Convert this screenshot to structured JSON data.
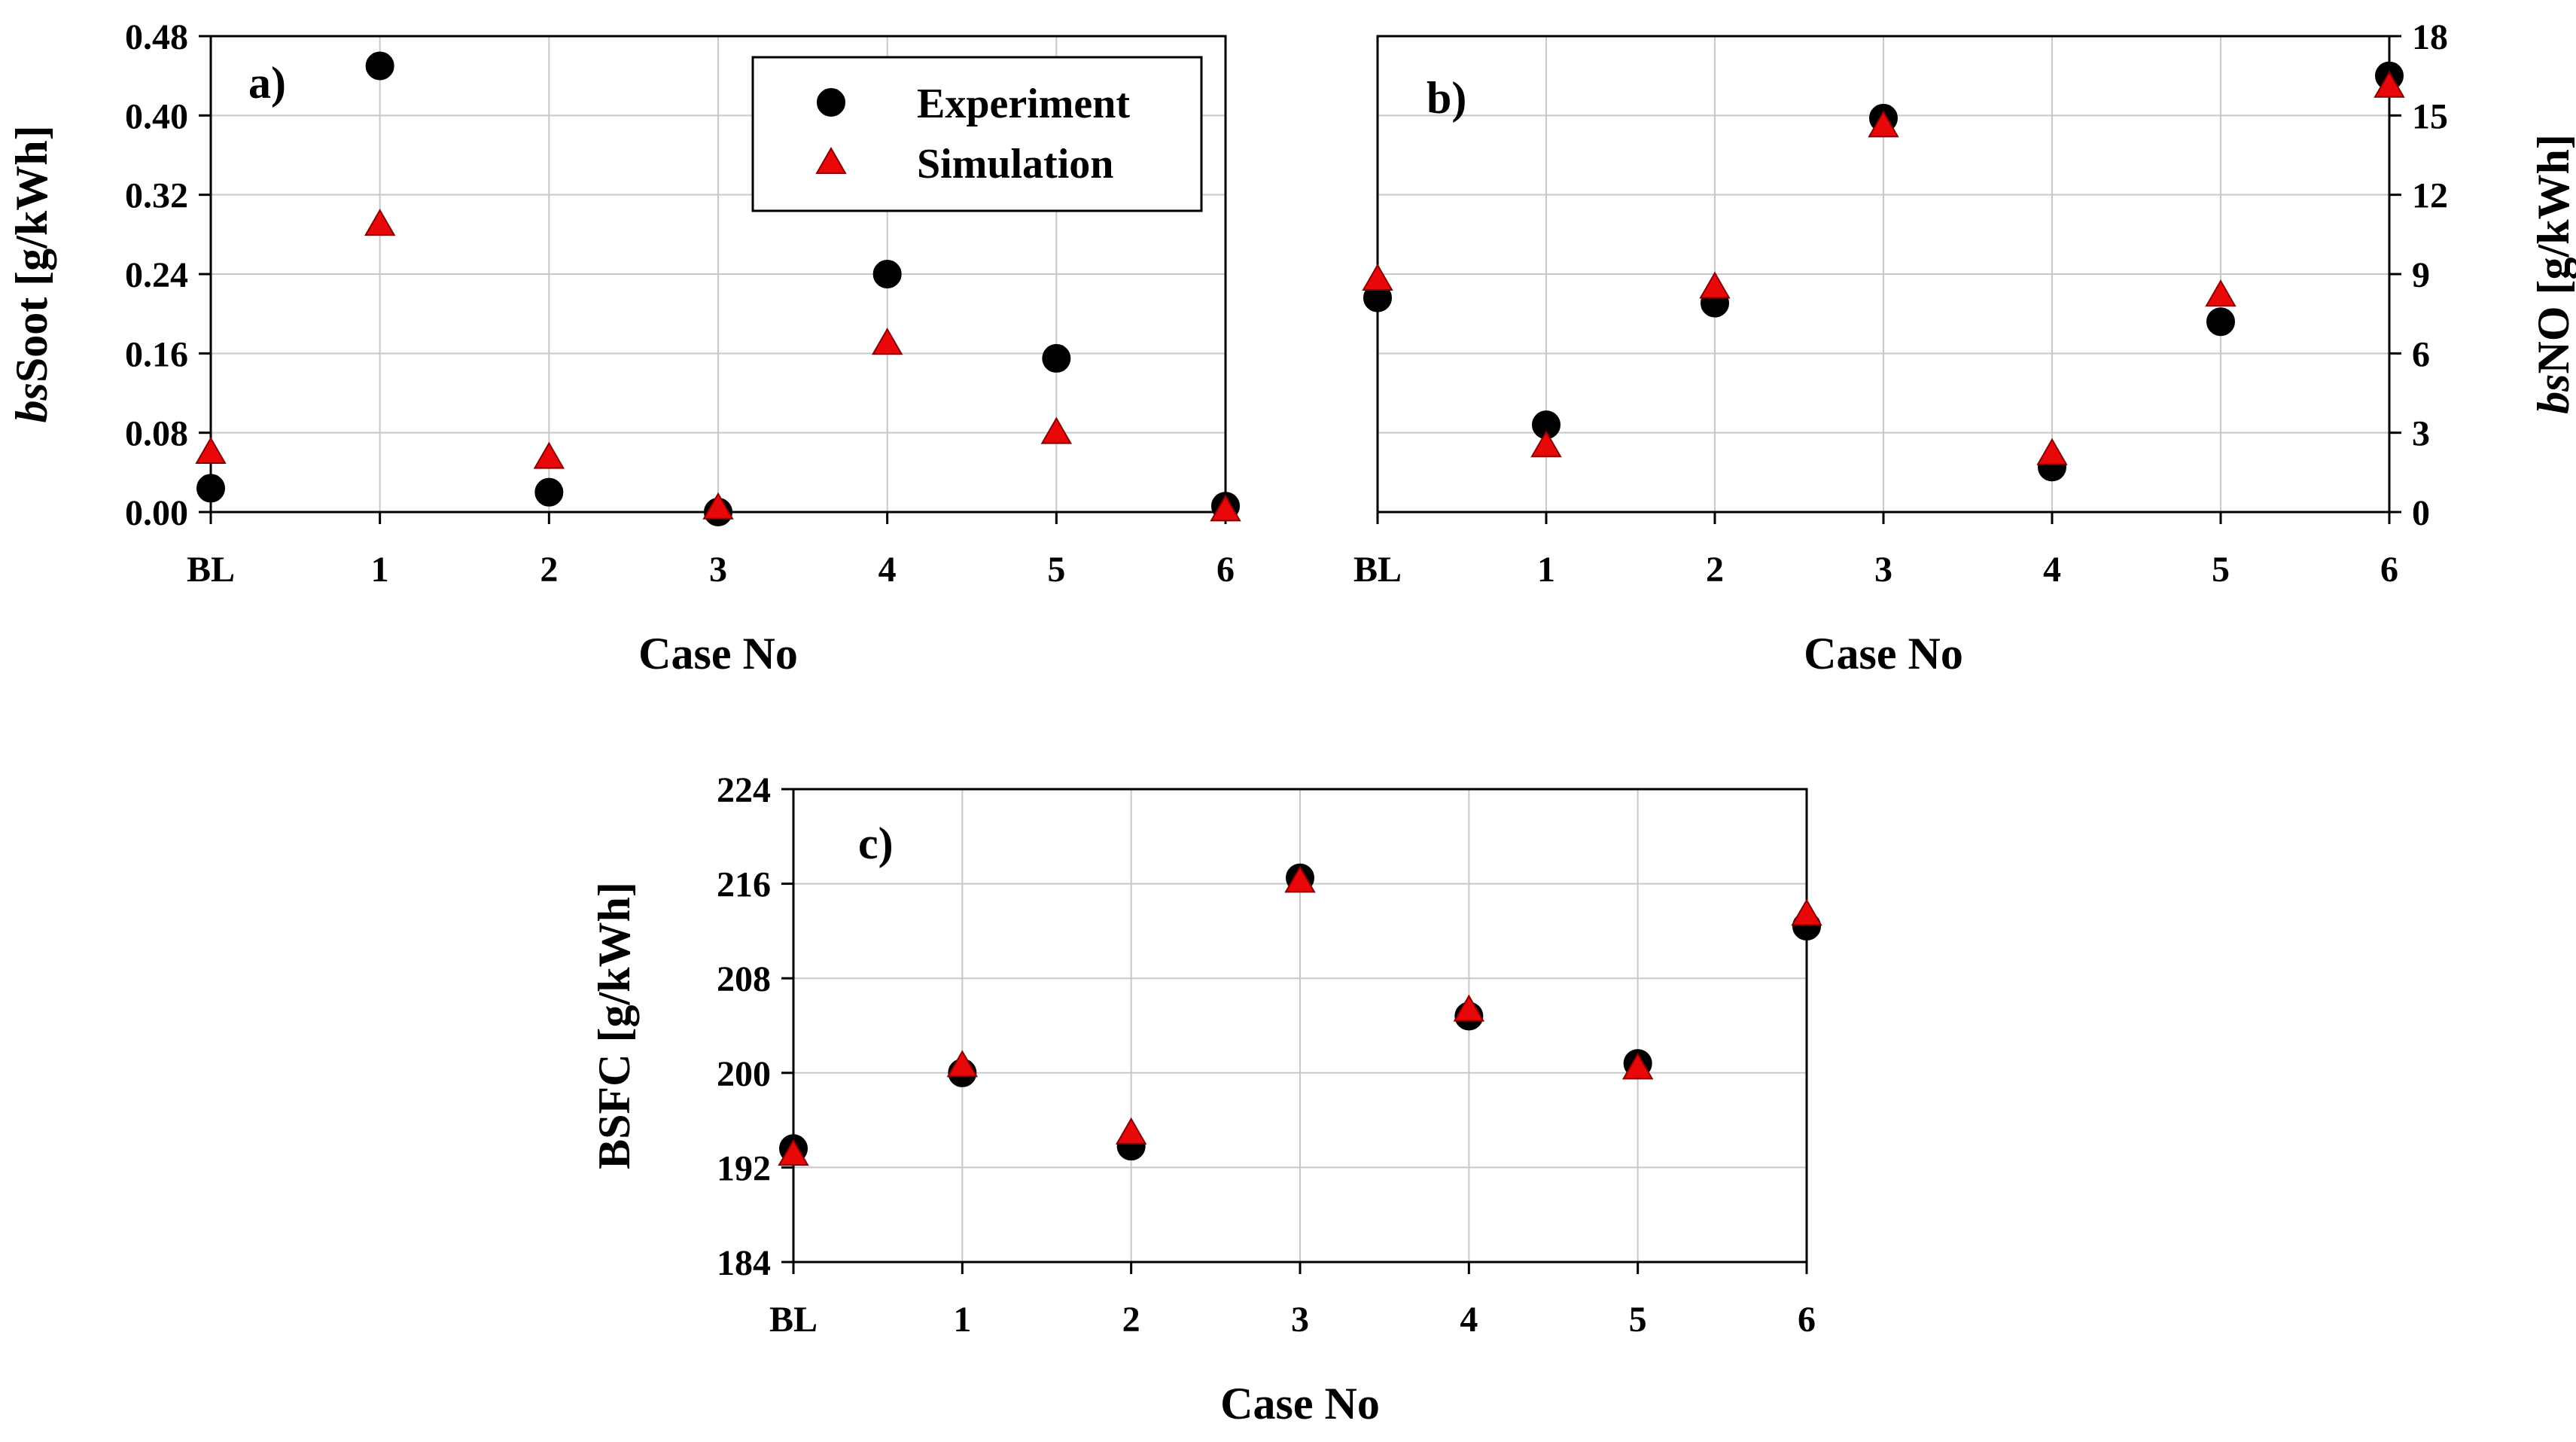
{
  "chart_data": [
    {
      "type": "scatter",
      "panel_label": "a)",
      "categories": [
        "BL",
        "1",
        "2",
        "3",
        "4",
        "5",
        "6"
      ],
      "series": [
        {
          "name": "Experiment",
          "marker": "circle",
          "color": "#000000",
          "values": [
            0.024,
            0.45,
            0.02,
            0.0,
            0.24,
            0.155,
            0.006
          ]
        },
        {
          "name": "Simulation",
          "marker": "triangle",
          "color": "#e8080a",
          "values": [
            0.06,
            0.29,
            0.055,
            0.004,
            0.17,
            0.08,
            0.002
          ]
        }
      ],
      "xlabel": "Case No",
      "ylabel_italic": "bs",
      "ylabel_rest": "Soot [g/kWh]",
      "ylim": [
        0,
        0.48
      ],
      "yticks": [
        "0.00",
        "0.08",
        "0.16",
        "0.24",
        "0.32",
        "0.40",
        "0.48"
      ],
      "grid": true,
      "legend": "top-right",
      "y_axis_side": "left"
    },
    {
      "type": "scatter",
      "panel_label": "b)",
      "categories": [
        "BL",
        "1",
        "2",
        "3",
        "4",
        "5",
        "6"
      ],
      "series": [
        {
          "name": "Experiment",
          "marker": "circle",
          "color": "#000000",
          "values": [
            8.1,
            3.3,
            7.9,
            14.9,
            1.7,
            7.2,
            16.5
          ]
        },
        {
          "name": "Simulation",
          "marker": "triangle",
          "color": "#e8080a",
          "values": [
            8.8,
            2.5,
            8.5,
            14.6,
            2.2,
            8.2,
            16.1
          ]
        }
      ],
      "xlabel": "Case No",
      "ylabel_italic": "bs",
      "ylabel_rest": "NO [g/kWh]",
      "ylim": [
        0,
        18
      ],
      "yticks": [
        "0",
        "3",
        "6",
        "9",
        "12",
        "15",
        "18"
      ],
      "grid": true,
      "y_axis_side": "right"
    },
    {
      "type": "scatter",
      "panel_label": "c)",
      "categories": [
        "BL",
        "1",
        "2",
        "3",
        "4",
        "5",
        "6"
      ],
      "series": [
        {
          "name": "Experiment",
          "marker": "circle",
          "color": "#000000",
          "values": [
            193.6,
            200.0,
            193.8,
            216.5,
            204.8,
            200.8,
            212.4
          ]
        },
        {
          "name": "Simulation",
          "marker": "triangle",
          "color": "#e8080a",
          "values": [
            193.1,
            200.6,
            194.9,
            216.2,
            205.3,
            200.4,
            213.4
          ]
        }
      ],
      "xlabel": "Case No",
      "ylabel_italic": "",
      "ylabel_rest": "BSFC [g/kWh]",
      "ylim": [
        184,
        224
      ],
      "yticks": [
        "184",
        "192",
        "200",
        "208",
        "216",
        "224"
      ],
      "grid": true,
      "y_axis_side": "left"
    }
  ]
}
